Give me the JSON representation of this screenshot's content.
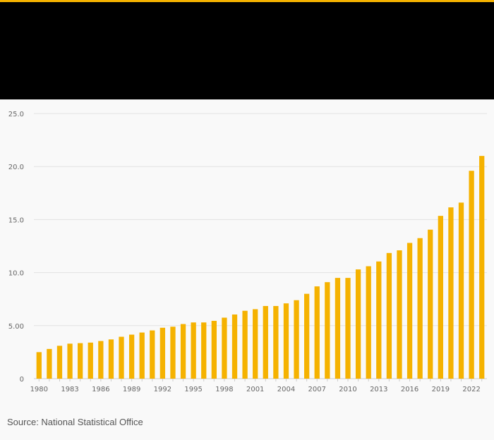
{
  "colors": {
    "accent": "#f5b200",
    "bar": "#f5b200",
    "header_bg": "#000000",
    "grid": "#e2e2e2",
    "axis_text": "#666666"
  },
  "source": "Source: National Statistical Office",
  "chart_data": {
    "type": "bar",
    "title": "",
    "xlabel": "",
    "ylabel": "",
    "ylim": [
      0,
      25
    ],
    "yticks": [
      {
        "value": 0,
        "label": "0"
      },
      {
        "value": 5,
        "label": "5.00"
      },
      {
        "value": 10,
        "label": "10.0"
      },
      {
        "value": 15,
        "label": "15.0"
      },
      {
        "value": 20,
        "label": "20.0"
      },
      {
        "value": 25,
        "label": "25.0"
      }
    ],
    "xtick_labels": [
      "1980",
      "1983",
      "1986",
      "1989",
      "1992",
      "1995",
      "1998",
      "2001",
      "2004",
      "2007",
      "2010",
      "2013",
      "2016",
      "2019",
      "2022"
    ],
    "categories": [
      "1980",
      "1981",
      "1982",
      "1983",
      "1984",
      "1985",
      "1986",
      "1987",
      "1988",
      "1989",
      "1990",
      "1991",
      "1992",
      "1993",
      "1994",
      "1995",
      "1996",
      "1997",
      "1998",
      "1999",
      "2000",
      "2001",
      "2002",
      "2003",
      "2004",
      "2005",
      "2006",
      "2007",
      "2008",
      "2009",
      "2010",
      "2011",
      "2012",
      "2013",
      "2014",
      "2015",
      "2016",
      "2017",
      "2018",
      "2019",
      "2020",
      "2021",
      "2022",
      "2023"
    ],
    "values": [
      2.5,
      2.8,
      3.1,
      3.3,
      3.35,
      3.4,
      3.55,
      3.7,
      3.95,
      4.15,
      4.35,
      4.55,
      4.8,
      4.9,
      5.15,
      5.3,
      5.3,
      5.45,
      5.75,
      6.05,
      6.4,
      6.55,
      6.85,
      6.85,
      7.1,
      7.4,
      8.0,
      8.7,
      9.1,
      9.5,
      9.5,
      10.3,
      10.6,
      11.05,
      11.85,
      12.1,
      12.8,
      13.25,
      14.05,
      15.35,
      16.15,
      16.6,
      19.6,
      21.0
    ]
  }
}
